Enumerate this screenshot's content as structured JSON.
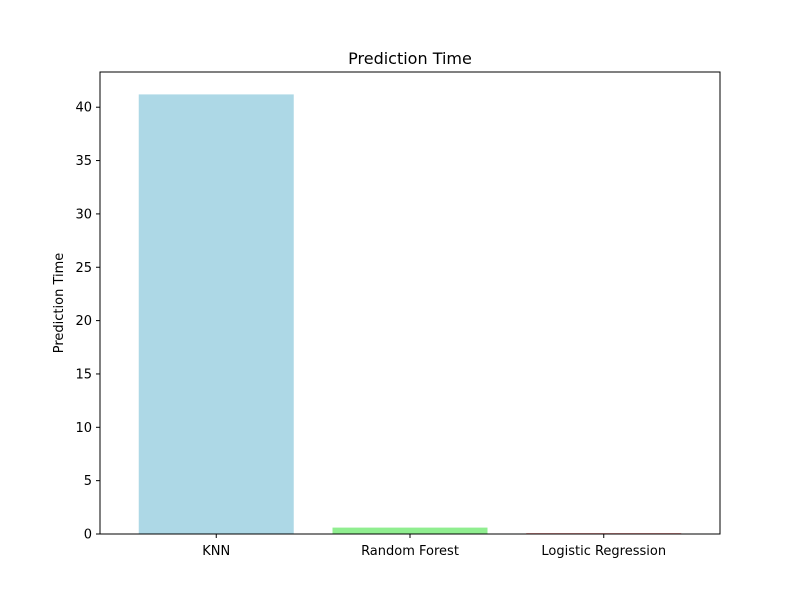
{
  "chart_data": {
    "type": "bar",
    "title": "Prediction Time",
    "xlabel": "",
    "ylabel": "Prediction Time",
    "categories": [
      "KNN",
      "Random Forest",
      "Logistic Regression"
    ],
    "values": [
      41.2,
      0.6,
      0.08
    ],
    "colors": [
      "#add8e6",
      "#90ee90",
      "#f08080"
    ],
    "ylim": [
      0,
      43.3
    ],
    "yticks": [
      0,
      5,
      10,
      15,
      20,
      25,
      30,
      35,
      40
    ],
    "grid": false,
    "legend": "none"
  }
}
